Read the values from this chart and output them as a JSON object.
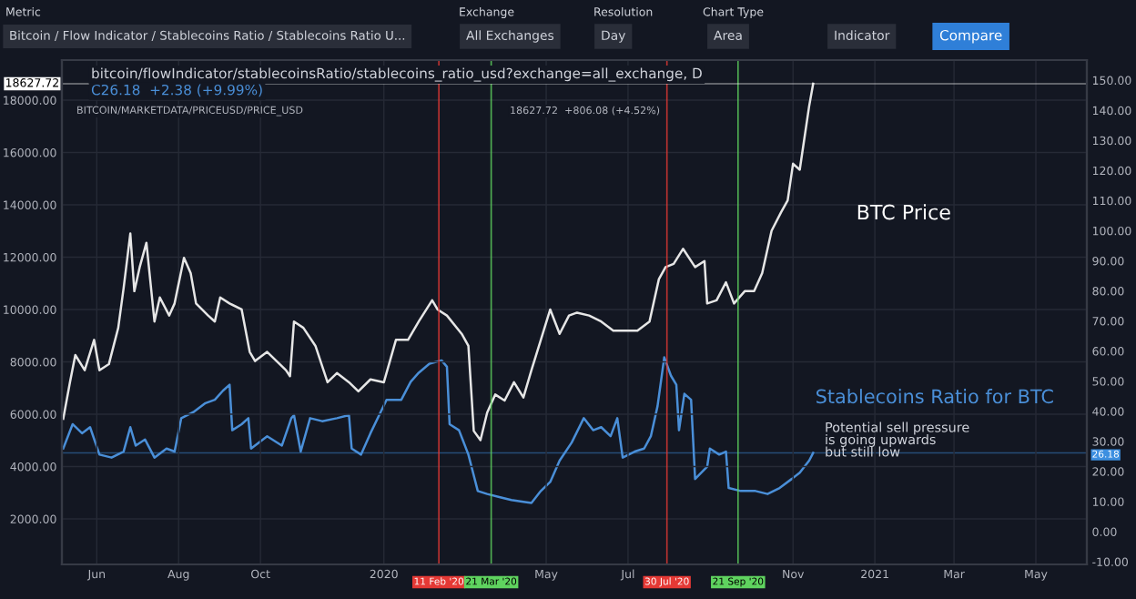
{
  "chart_data": {
    "type": "line",
    "annotations": [
      "Metric",
      "Bitcoin / Flow Indicator / Stablecoins Ratio / Stablecoins Ratio U...",
      "Exchange",
      "All Exchanges",
      "Resolution",
      "Day",
      "Chart Type",
      "Area",
      "Indicator",
      "Compare",
      "bitcoin/flowIndicator/stablecoinsRatio/stablecoins_ratio_usd?exchange=all_exchange, D",
      "C26.18  +2.38 (+9.99%)",
      "BITCOIN/MARKETDATA/PRICEUSD/PRICE_USD",
      "18627.72  +806.08 (+4.52%)",
      "Potential sell pressure\nis going upwards\nbut still low"
    ],
    "series": [
      {
        "name": "BTC Price",
        "color": "#e6e6e6",
        "x": [
          "2019-05-07",
          "2019-05-12",
          "2019-05-16",
          "2019-05-23",
          "2019-05-30",
          "2019-06-03",
          "2019-06-10",
          "2019-06-17",
          "2019-06-21",
          "2019-06-26",
          "2019-06-29",
          "2019-07-03",
          "2019-07-08",
          "2019-07-14",
          "2019-07-18",
          "2019-07-25",
          "2019-07-29",
          "2019-08-05",
          "2019-08-10",
          "2019-08-14",
          "2019-08-23",
          "2019-08-28",
          "2019-09-01",
          "2019-09-08",
          "2019-09-17",
          "2019-09-23",
          "2019-09-27",
          "2019-10-06",
          "2019-10-13",
          "2019-10-20",
          "2019-10-23",
          "2019-10-26",
          "2019-11-02",
          "2019-11-11",
          "2019-11-20",
          "2019-11-27",
          "2019-12-06",
          "2019-12-13",
          "2019-12-22",
          "2020-01-01",
          "2020-01-10",
          "2020-01-19",
          "2020-01-27",
          "2020-02-06",
          "2020-02-10",
          "2020-02-17",
          "2020-02-28",
          "2020-03-04",
          "2020-03-08",
          "2020-03-13",
          "2020-03-18",
          "2020-03-24",
          "2020-03-31",
          "2020-04-07",
          "2020-04-14",
          "2020-04-20",
          "2020-04-27",
          "2020-05-04",
          "2020-05-11",
          "2020-05-18",
          "2020-05-24",
          "2020-06-02",
          "2020-06-11",
          "2020-06-20",
          "2020-06-29",
          "2020-07-08",
          "2020-07-17",
          "2020-07-24",
          "2020-07-29",
          "2020-08-04",
          "2020-08-11",
          "2020-08-20",
          "2020-08-27",
          "2020-08-29",
          "2020-09-05",
          "2020-09-12",
          "2020-09-18",
          "2020-09-26",
          "2020-10-03",
          "2020-10-09",
          "2020-10-16",
          "2020-10-23",
          "2020-10-28",
          "2020-11-01",
          "2020-11-06",
          "2020-11-10",
          "2020-11-13",
          "2020-11-16"
        ],
        "values": [
          5826,
          7220,
          8260,
          7680,
          8840,
          7680,
          7910,
          9300,
          10810,
          12900,
          10700,
          11620,
          12550,
          9540,
          10460,
          9770,
          10230,
          11970,
          11390,
          10230,
          9770,
          9540,
          10460,
          10230,
          10000,
          8380,
          8030,
          8380,
          8030,
          7680,
          7450,
          9540,
          9300,
          8610,
          7220,
          7570,
          7220,
          6870,
          7330,
          7220,
          8840,
          8840,
          9540,
          10350,
          10000,
          9770,
          9070,
          8610,
          5360,
          5010,
          6060,
          6750,
          6520,
          7220,
          6640,
          7680,
          8840,
          10000,
          9070,
          9770,
          9880,
          9770,
          9540,
          9190,
          9190,
          9190,
          9540,
          11160,
          11620,
          11740,
          12320,
          11620,
          11850,
          10230,
          10350,
          11040,
          10230,
          10700,
          10700,
          11390,
          13010,
          13710,
          14170,
          15570,
          15340,
          16730,
          17770,
          18627.72
        ]
      },
      {
        "name": "Stablecoins Ratio for BTC",
        "color": "#4a8fd8",
        "axis": "y2",
        "x": [
          "2019-05-07",
          "2019-05-14",
          "2019-05-21",
          "2019-05-27",
          "2019-06-03",
          "2019-06-12",
          "2019-06-21",
          "2019-06-26",
          "2019-06-30",
          "2019-07-07",
          "2019-07-14",
          "2019-07-23",
          "2019-07-29",
          "2019-08-03",
          "2019-08-12",
          "2019-08-21",
          "2019-08-28",
          "2019-09-03",
          "2019-09-08",
          "2019-09-10",
          "2019-09-17",
          "2019-09-22",
          "2019-09-24",
          "2019-10-06",
          "2019-10-17",
          "2019-10-24",
          "2019-10-26",
          "2019-10-31",
          "2019-11-07",
          "2019-11-16",
          "2019-11-27",
          "2019-12-06",
          "2019-12-08",
          "2019-12-15",
          "2019-12-22",
          "2020-01-03",
          "2020-01-14",
          "2020-01-21",
          "2020-01-27",
          "2020-02-04",
          "2020-02-13",
          "2020-02-17",
          "2020-02-19",
          "2020-02-26",
          "2020-03-04",
          "2020-03-11",
          "2020-03-18",
          "2020-03-27",
          "2020-04-05",
          "2020-04-14",
          "2020-04-20",
          "2020-04-27",
          "2020-05-04",
          "2020-05-11",
          "2020-05-20",
          "2020-05-29",
          "2020-06-05",
          "2020-06-11",
          "2020-06-18",
          "2020-06-23",
          "2020-06-27",
          "2020-07-06",
          "2020-07-13",
          "2020-07-18",
          "2020-07-23",
          "2020-07-28",
          "2020-08-02",
          "2020-08-06",
          "2020-08-08",
          "2020-08-12",
          "2020-08-17",
          "2020-08-20",
          "2020-08-29",
          "2020-08-31",
          "2020-09-07",
          "2020-09-12",
          "2020-09-14",
          "2020-09-23",
          "2020-10-04",
          "2020-10-13",
          "2020-10-22",
          "2020-10-31",
          "2020-11-06",
          "2020-11-13",
          "2020-11-16"
        ],
        "values": [
          27.6,
          35.7,
          32.7,
          34.7,
          25.6,
          24.6,
          26.6,
          34.7,
          28.6,
          30.6,
          24.6,
          27.6,
          26.6,
          37.7,
          39.7,
          42.7,
          43.8,
          46.8,
          48.8,
          33.7,
          35.7,
          37.7,
          27.6,
          31.7,
          28.6,
          37.7,
          38.7,
          26.6,
          37.7,
          36.7,
          37.7,
          38.7,
          27.6,
          25.6,
          32.7,
          43.8,
          43.8,
          49.8,
          52.8,
          55.8,
          56.9,
          54.8,
          35.7,
          33.7,
          25.6,
          13.5,
          12.5,
          11.5,
          10.5,
          9.9,
          9.5,
          13.5,
          16.5,
          23.6,
          29.6,
          37.7,
          33.7,
          34.7,
          31.7,
          37.7,
          24.6,
          26.6,
          27.6,
          31.7,
          41.7,
          57.9,
          51.8,
          48.8,
          33.7,
          45.8,
          43.8,
          17.5,
          21.6,
          27.6,
          25.6,
          26.6,
          14.5,
          13.5,
          13.5,
          12.5,
          14.5,
          17.5,
          19.6,
          23.6,
          26.18
        ]
      }
    ],
    "xlim": [
      "2019-05-06",
      "2021-06-08"
    ],
    "xticks": [
      {
        "value": "2019-06-01",
        "label": "Jun"
      },
      {
        "value": "2019-08-01",
        "label": "Aug"
      },
      {
        "value": "2019-10-01",
        "label": "Oct"
      },
      {
        "value": "2020-01-01",
        "label": "2020"
      },
      {
        "value": "2020-05-01",
        "label": "May"
      },
      {
        "value": "2020-07-01",
        "label": "Jul"
      },
      {
        "value": "2020-11-01",
        "label": "Nov"
      },
      {
        "value": "2021-01-01",
        "label": "2021"
      },
      {
        "value": "2021-03-01",
        "label": "Mar"
      },
      {
        "value": "2021-05-01",
        "label": "May"
      }
    ],
    "ylim": [
      260,
      19530
    ],
    "yticks": [
      {
        "value": 2000,
        "label": "2000.00"
      },
      {
        "value": 4000,
        "label": "4000.00"
      },
      {
        "value": 6000,
        "label": "6000.00"
      },
      {
        "value": 8000,
        "label": "8000.00"
      },
      {
        "value": 10000,
        "label": "10000.00"
      },
      {
        "value": 12000,
        "label": "12000.00"
      },
      {
        "value": 14000,
        "label": "14000.00"
      },
      {
        "value": 16000,
        "label": "16000.00"
      },
      {
        "value": 18000,
        "label": "18000.00"
      }
    ],
    "y2lim": [
      -10.9,
      156.7
    ],
    "y2ticks": [
      {
        "value": -10,
        "label": "-10.00"
      },
      {
        "value": 0,
        "label": "0.00"
      },
      {
        "value": 10,
        "label": "10.00"
      },
      {
        "value": 20,
        "label": "20.00"
      },
      {
        "value": 30,
        "label": "30.00"
      },
      {
        "value": 40,
        "label": "40.00"
      },
      {
        "value": 50,
        "label": "50.00"
      },
      {
        "value": 60,
        "label": "60.00"
      },
      {
        "value": 70,
        "label": "70.00"
      },
      {
        "value": 80,
        "label": "80.00"
      },
      {
        "value": 90,
        "label": "90.00"
      },
      {
        "value": 100,
        "label": "100.00"
      },
      {
        "value": 110,
        "label": "110.00"
      },
      {
        "value": 120,
        "label": "120.00"
      },
      {
        "value": 130,
        "label": "130.00"
      },
      {
        "value": 140,
        "label": "140.00"
      },
      {
        "value": 150,
        "label": "150.00"
      }
    ],
    "ref_lines": [
      {
        "axis": "x",
        "value": "2020-02-11",
        "label": "11 Feb '20",
        "color": "#e53935"
      },
      {
        "axis": "x",
        "value": "2020-03-21",
        "label": "21 Mar '20",
        "color": "#5fd35f"
      },
      {
        "axis": "x",
        "value": "2020-07-30",
        "label": "30 Jul '20",
        "color": "#e53935"
      },
      {
        "axis": "x",
        "value": "2020-09-21",
        "label": "21 Sep '20",
        "color": "#5fd35f"
      },
      {
        "axis": "y",
        "value": 18627.72,
        "label": "18627.72",
        "color": "#ffffff"
      },
      {
        "axis": "y2",
        "value": 26.18,
        "label": "26.18",
        "color": "#3d8fe0"
      }
    ],
    "grid": true,
    "legend": false,
    "marker": "none",
    "line_style": "solid"
  }
}
